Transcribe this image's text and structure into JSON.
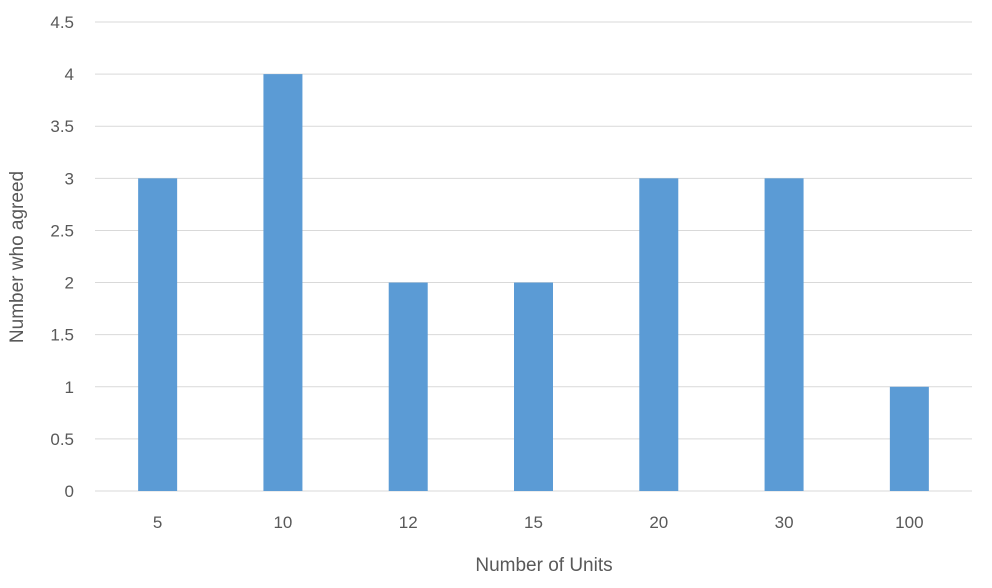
{
  "chart_data": {
    "type": "bar",
    "title": "",
    "xlabel": "Number of Units",
    "ylabel": "Number   who agreed",
    "categories": [
      "5",
      "10",
      "12",
      "15",
      "20",
      "30",
      "100"
    ],
    "values": [
      3,
      4,
      2,
      2,
      3,
      3,
      1
    ],
    "ylim": [
      0,
      4.5
    ],
    "yticks": [
      "0",
      "0.5",
      "1",
      "1.5",
      "2",
      "2.5",
      "3",
      "3.5",
      "4",
      "4.5"
    ],
    "grid": true,
    "legend": "none",
    "colors": {
      "bar": "#5b9bd5",
      "grid": "#d9d9d9",
      "text": "#595959"
    }
  }
}
